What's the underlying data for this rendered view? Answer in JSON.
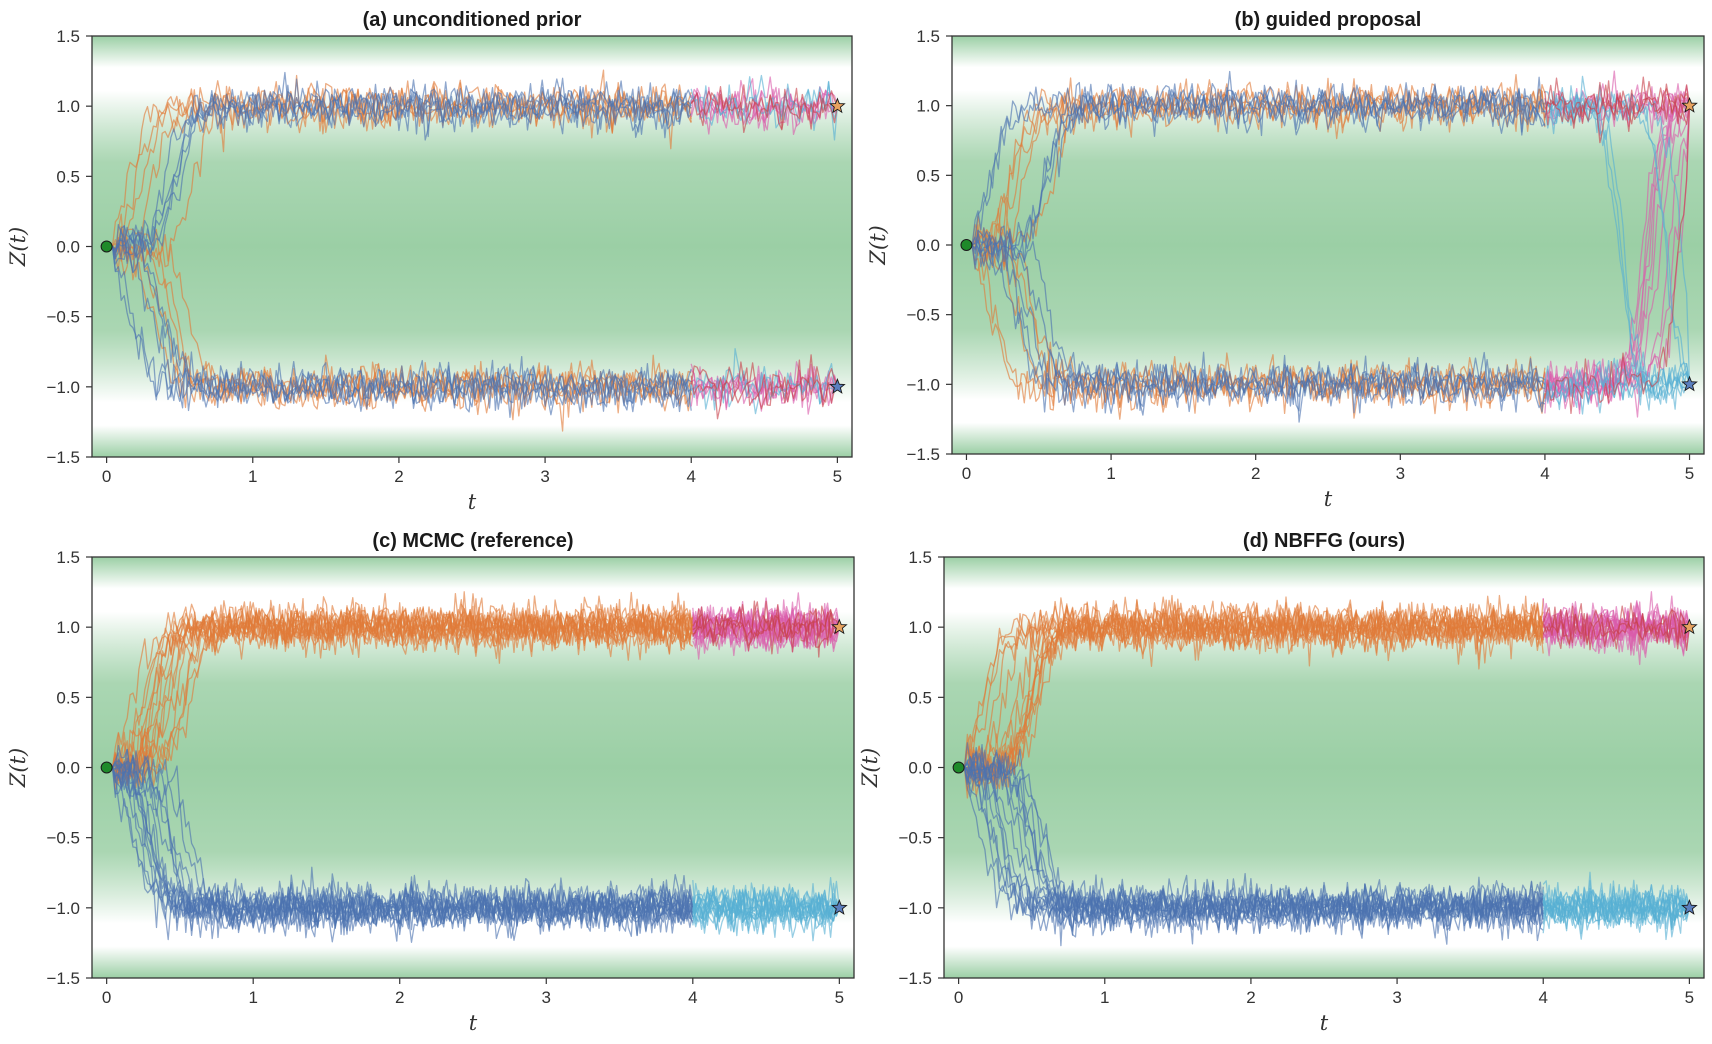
{
  "figure": {
    "colors": {
      "band_dark": "#9bcfa5",
      "band_light": "#ffffff",
      "path_orange": "#e07b39",
      "path_blue": "#4c72b0",
      "path_pink": "#da5cab",
      "path_cyan": "#57b0d4",
      "path_red": "#c8404a",
      "start_marker": "#1f8a2a",
      "star_orange": "#e8a25f",
      "star_blue": "#5a7fbf",
      "axis": "#333333"
    }
  },
  "chart_data": [
    {
      "type": "line",
      "title": "(a) unconditioned prior",
      "xlabel": "t",
      "ylabel": "Z(t)",
      "xlim": [
        -0.1,
        5.1
      ],
      "ylim": [
        -1.5,
        1.5
      ],
      "xticks": [
        "0",
        "1",
        "2",
        "3",
        "4",
        "5"
      ],
      "yticks": [
        "−1.5",
        "−1.0",
        "−0.5",
        "0.0",
        "0.5",
        "1.0",
        "1.5"
      ],
      "start_point": [
        0,
        0
      ],
      "targets": [
        {
          "x": 5,
          "y": 1.0,
          "marker": "star-orange"
        },
        {
          "x": 5,
          "y": -1.0,
          "marker": "star-blue"
        }
      ],
      "series": [
        {
          "color": "orange",
          "t_start": 0,
          "t_end": 4,
          "count": 10,
          "pattern": "split"
        },
        {
          "color": "blue",
          "t_start": 0,
          "t_end": 4,
          "count": 10,
          "pattern": "split"
        },
        {
          "color": "pink",
          "t_start": 4,
          "t_end": 5,
          "count": 10,
          "pattern": "split"
        },
        {
          "color": "cyan",
          "t_start": 4,
          "t_end": 5,
          "count": 4,
          "pattern": "split"
        },
        {
          "color": "red",
          "t_start": 4,
          "t_end": 5,
          "count": 4,
          "pattern": "split"
        }
      ]
    },
    {
      "type": "line",
      "title": "(b) guided proposal",
      "xlabel": "t",
      "ylabel": "Z(t)",
      "xlim": [
        -0.1,
        5.1
      ],
      "ylim": [
        -1.5,
        1.5
      ],
      "xticks": [
        "0",
        "1",
        "2",
        "3",
        "4",
        "5"
      ],
      "yticks": [
        "−1.5",
        "−1.0",
        "−0.5",
        "0.0",
        "0.5",
        "1.0",
        "1.5"
      ],
      "start_point": [
        0,
        0
      ],
      "targets": [
        {
          "x": 5,
          "y": 1.0,
          "marker": "star-orange"
        },
        {
          "x": 5,
          "y": -1.0,
          "marker": "star-blue"
        }
      ],
      "series": [
        {
          "color": "orange",
          "t_start": 0,
          "t_end": 4,
          "count": 10,
          "pattern": "split"
        },
        {
          "color": "blue",
          "t_start": 0,
          "t_end": 4,
          "count": 10,
          "pattern": "split"
        },
        {
          "color": "pink",
          "t_start": 4,
          "t_end": 5,
          "count": 14,
          "pattern": "to-upper"
        },
        {
          "color": "cyan",
          "t_start": 4,
          "t_end": 5,
          "count": 10,
          "pattern": "to-lower"
        },
        {
          "color": "red",
          "t_start": 4,
          "t_end": 5,
          "count": 4,
          "pattern": "to-upper"
        }
      ]
    },
    {
      "type": "line",
      "title": "(c) MCMC (reference)",
      "xlabel": "t",
      "ylabel": "Z(t)",
      "xlim": [
        -0.1,
        5.1
      ],
      "ylim": [
        -1.5,
        1.5
      ],
      "xticks": [
        "0",
        "1",
        "2",
        "3",
        "4",
        "5"
      ],
      "yticks": [
        "−1.5",
        "−1.0",
        "−0.5",
        "0.0",
        "0.5",
        "1.0",
        "1.5"
      ],
      "start_point": [
        0,
        0
      ],
      "targets": [
        {
          "x": 5,
          "y": 1.0,
          "marker": "star-orange"
        },
        {
          "x": 5,
          "y": -1.0,
          "marker": "star-blue"
        }
      ],
      "series": [
        {
          "color": "orange",
          "t_start": 0,
          "t_end": 4,
          "count": 16,
          "pattern": "upper"
        },
        {
          "color": "blue",
          "t_start": 0,
          "t_end": 4,
          "count": 16,
          "pattern": "lower"
        },
        {
          "color": "pink",
          "t_start": 4,
          "t_end": 5,
          "count": 16,
          "pattern": "upper"
        },
        {
          "color": "cyan",
          "t_start": 4,
          "t_end": 5,
          "count": 16,
          "pattern": "lower"
        },
        {
          "color": "red",
          "t_start": 4,
          "t_end": 5,
          "count": 4,
          "pattern": "upper"
        }
      ]
    },
    {
      "type": "line",
      "title": "(d) NBFFG (ours)",
      "xlabel": "t",
      "ylabel": "Z(t)",
      "xlim": [
        -0.1,
        5.1
      ],
      "ylim": [
        -1.5,
        1.5
      ],
      "xticks": [
        "0",
        "1",
        "2",
        "3",
        "4",
        "5"
      ],
      "yticks": [
        "−1.5",
        "−1.0",
        "−0.5",
        "0.0",
        "0.5",
        "1.0",
        "1.5"
      ],
      "start_point": [
        0,
        0
      ],
      "targets": [
        {
          "x": 5,
          "y": 1.0,
          "marker": "star-orange"
        },
        {
          "x": 5,
          "y": -1.0,
          "marker": "star-blue"
        }
      ],
      "series": [
        {
          "color": "orange",
          "t_start": 0,
          "t_end": 4,
          "count": 16,
          "pattern": "upper"
        },
        {
          "color": "blue",
          "t_start": 0,
          "t_end": 4,
          "count": 16,
          "pattern": "lower"
        },
        {
          "color": "pink",
          "t_start": 4,
          "t_end": 5,
          "count": 16,
          "pattern": "upper"
        },
        {
          "color": "cyan",
          "t_start": 4,
          "t_end": 5,
          "count": 16,
          "pattern": "lower"
        },
        {
          "color": "red",
          "t_start": 4,
          "t_end": 5,
          "count": 3,
          "pattern": "upper"
        }
      ]
    }
  ]
}
